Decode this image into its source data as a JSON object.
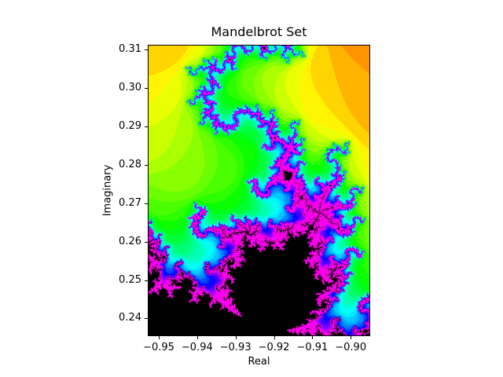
{
  "figure": {
    "background": "#ffffff",
    "text_color": "#000000"
  },
  "chart_data": {
    "type": "heatmap",
    "title": "Mandelbrot Set",
    "xlabel": "Real",
    "ylabel": "Imaginary",
    "xlim": [
      -0.952662,
      -0.895127
    ],
    "ylim": [
      0.235573,
      0.311126
    ],
    "grid": false,
    "legend": null,
    "x_ticks": [
      {
        "value": -0.95,
        "label": "−0.95"
      },
      {
        "value": -0.94,
        "label": "−0.94"
      },
      {
        "value": -0.93,
        "label": "−0.93"
      },
      {
        "value": -0.92,
        "label": "−0.92"
      },
      {
        "value": -0.91,
        "label": "−0.91"
      },
      {
        "value": -0.9,
        "label": "−0.90"
      }
    ],
    "y_ticks": [
      {
        "value": 0.31,
        "label": "0.31"
      },
      {
        "value": 0.3,
        "label": "0.30"
      },
      {
        "value": 0.29,
        "label": "0.29"
      },
      {
        "value": 0.28,
        "label": "0.28"
      },
      {
        "value": 0.27,
        "label": "0.27"
      },
      {
        "value": 0.26,
        "label": "0.26"
      },
      {
        "value": 0.25,
        "label": "0.25"
      },
      {
        "value": 0.24,
        "label": "0.24"
      }
    ],
    "mandelbrot": {
      "x_min": -0.952662,
      "x_max": -0.895127,
      "y_min": 0.235573,
      "y_max": 0.311126,
      "max_iter": 100,
      "escape_radius": 2,
      "colormap": "hsv",
      "interior_color": "#000000",
      "hue_start": 35,
      "hue_per_iter": 7.5,
      "hue_max": 304,
      "saturation": 1,
      "value": 1
    }
  }
}
